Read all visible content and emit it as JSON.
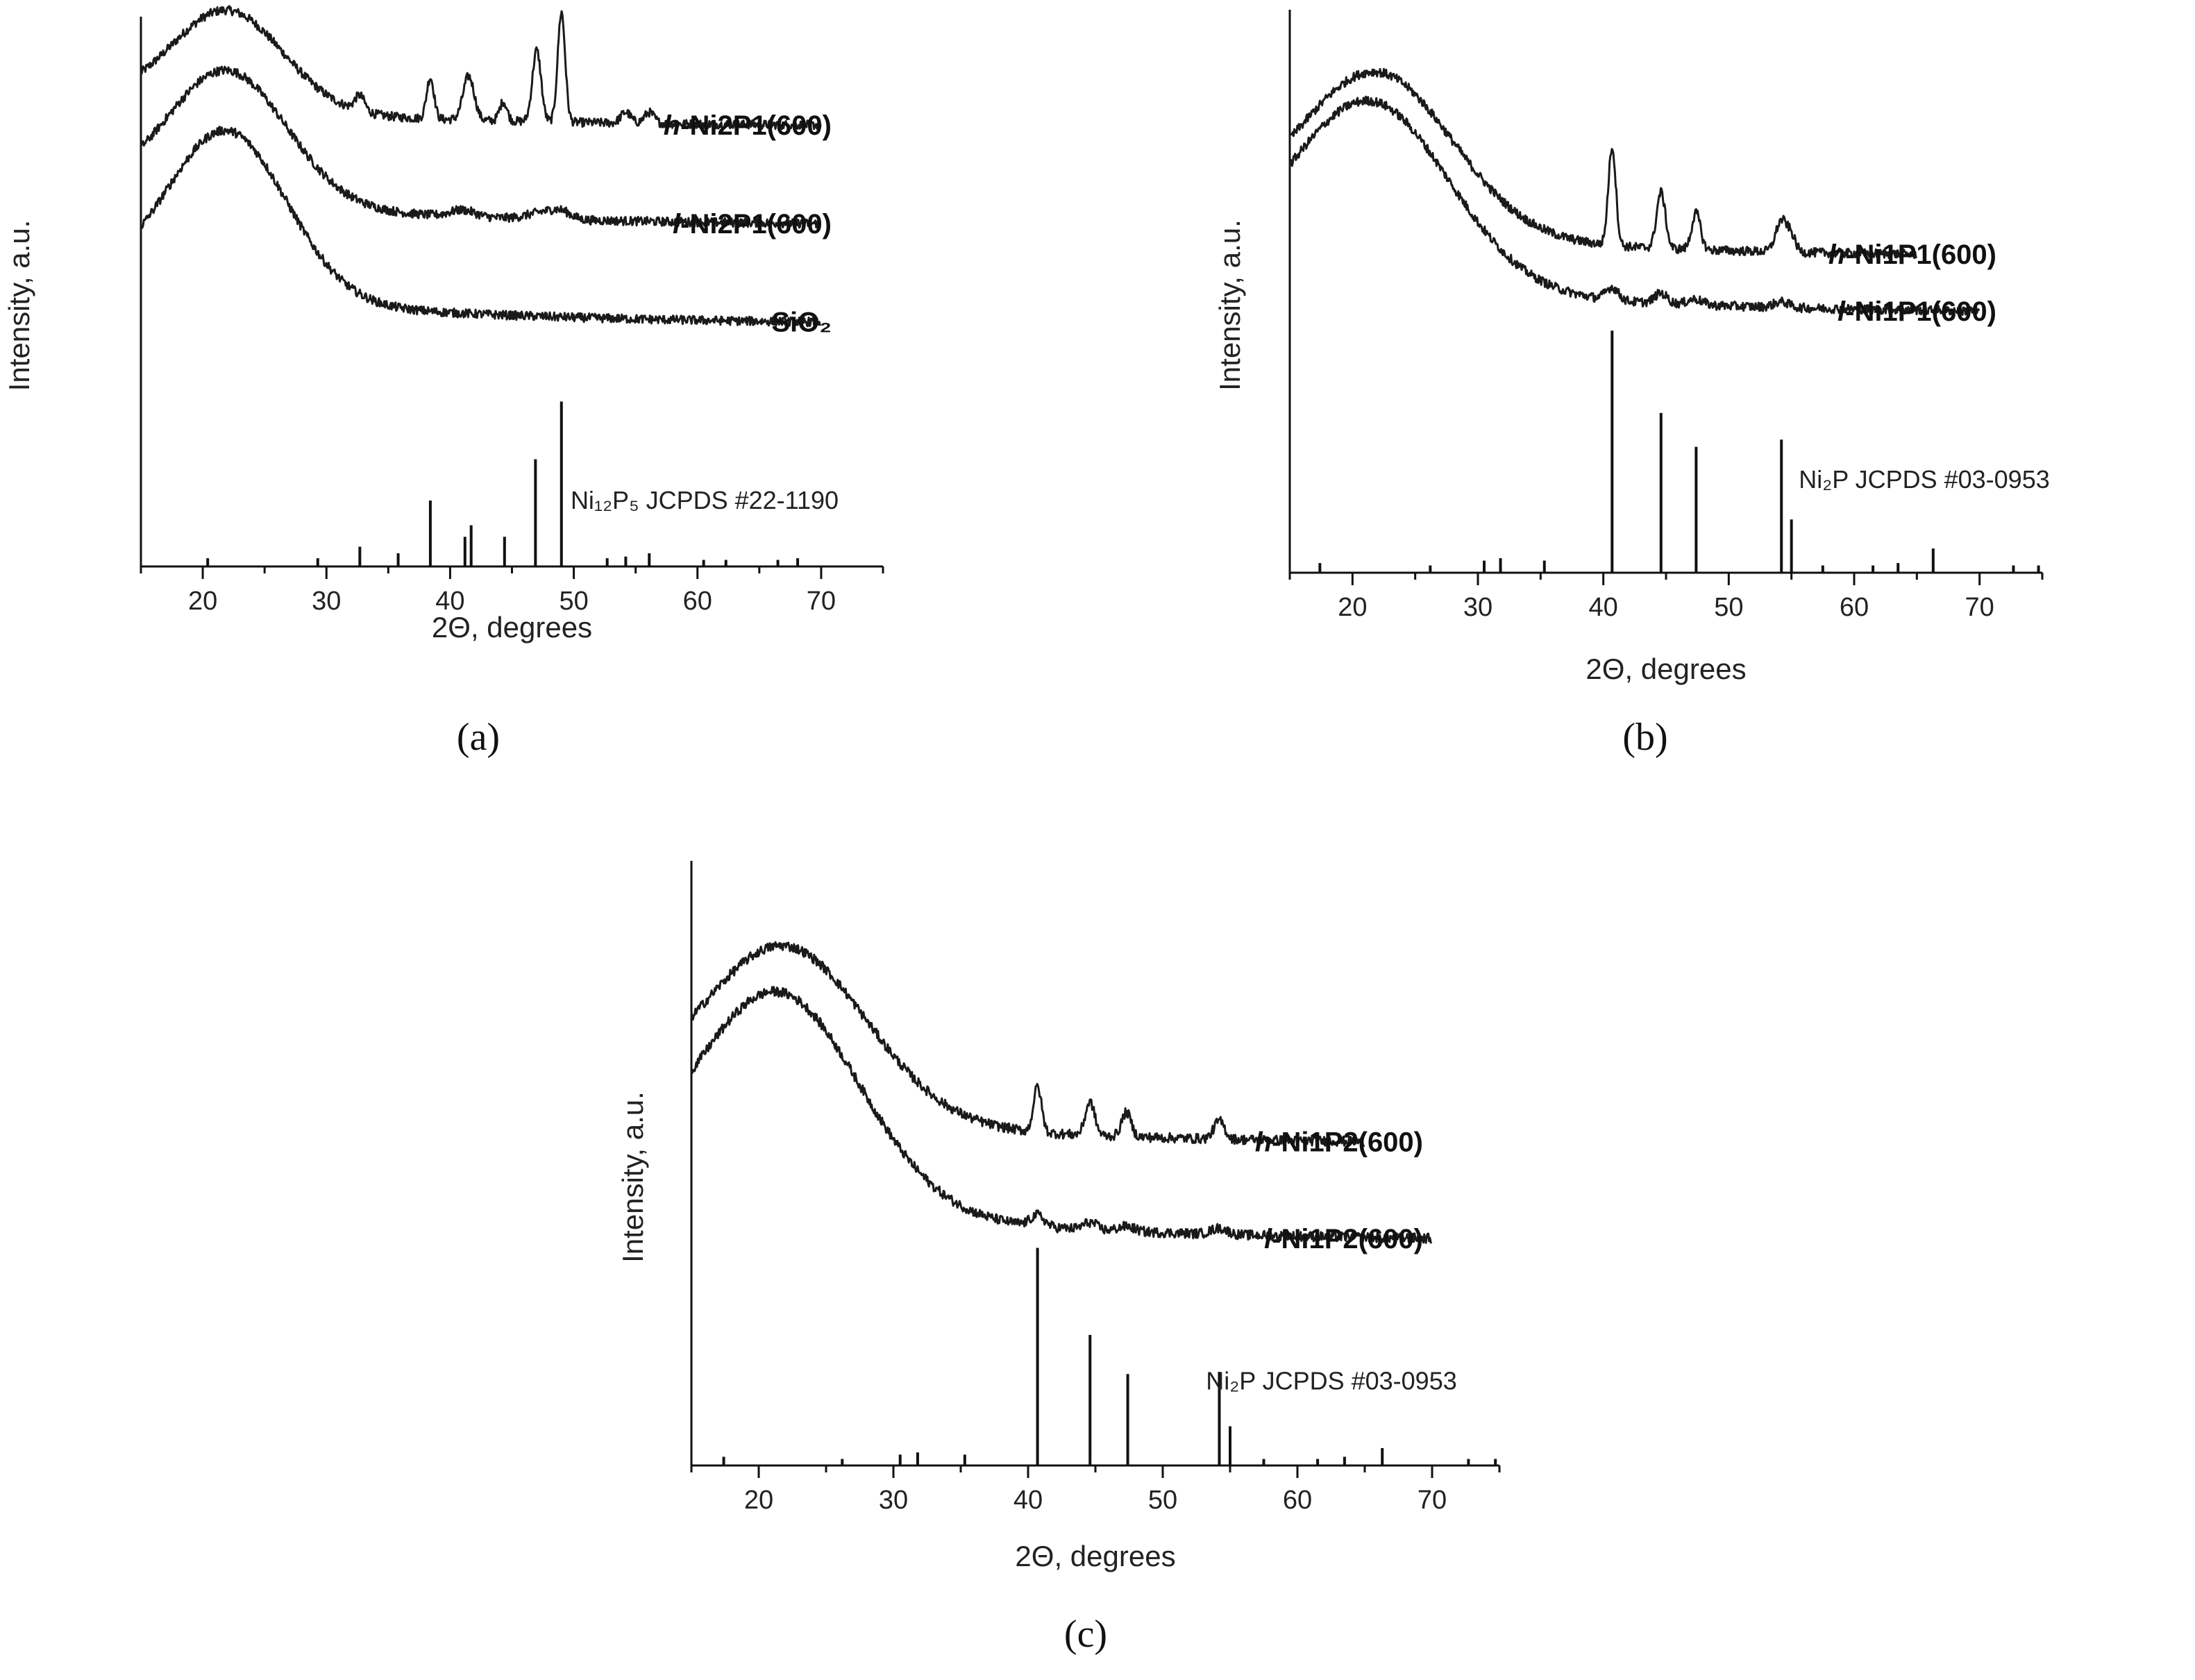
{
  "chart_data": [
    {
      "id": "a",
      "type": "line",
      "panel_label": "(a)",
      "xlabel": "2Θ, degrees",
      "ylabel": "Intensity, a.u.",
      "xlim": [
        15,
        75
      ],
      "ylim": [
        0,
        10
      ],
      "xticks": [
        20,
        30,
        40,
        50,
        60,
        70
      ],
      "series": [
        {
          "name": "h-Ni2P1(600)",
          "prefix": "h",
          "suffix": "-Ni2P1(600)",
          "offset": 8.0,
          "x_end": 70,
          "broad": {
            "center": 22,
            "width": 4.5,
            "height": 1.8
          },
          "peaks": [
            [
              32.7,
              0.28,
              0.4
            ],
            [
              38.4,
              0.75,
              0.3
            ],
            [
              41.5,
              0.8,
              0.45
            ],
            [
              44.3,
              0.35,
              0.3
            ],
            [
              47.0,
              1.3,
              0.35
            ],
            [
              49.0,
              2.0,
              0.3
            ],
            [
              54.2,
              0.2,
              0.4
            ],
            [
              56.1,
              0.2,
              0.4
            ]
          ]
        },
        {
          "name": "l-Ni2P1(600)",
          "prefix": "l",
          "suffix": "-Ni2P1(600)",
          "offset": 6.2,
          "x_end": 70,
          "broad": {
            "center": 22,
            "width": 4.8,
            "height": 2.4
          },
          "peaks": [
            [
              41.0,
              0.12,
              1.0
            ],
            [
              47.5,
              0.12,
              1.2
            ],
            [
              49.0,
              0.12,
              0.8
            ]
          ]
        },
        {
          "name": "SiO2",
          "prefix": "",
          "suffix": "SiO₂",
          "offset": 4.4,
          "x_end": 70,
          "broad": {
            "center": 22,
            "width": 4.8,
            "height": 3.0
          },
          "peaks": []
        }
      ],
      "reference": {
        "label": "Ni₁₂P₅ JCPDS #22-1190",
        "max_height": 3.0,
        "sticks": [
          [
            20.4,
            0.05
          ],
          [
            29.3,
            0.05
          ],
          [
            32.7,
            0.12
          ],
          [
            35.8,
            0.08
          ],
          [
            38.4,
            0.4
          ],
          [
            41.2,
            0.18
          ],
          [
            41.7,
            0.25
          ],
          [
            44.4,
            0.18
          ],
          [
            46.9,
            0.65
          ],
          [
            49.0,
            1.0
          ],
          [
            52.7,
            0.05
          ],
          [
            54.2,
            0.06
          ],
          [
            56.1,
            0.08
          ],
          [
            60.5,
            0.04
          ],
          [
            62.3,
            0.04
          ],
          [
            66.5,
            0.04
          ],
          [
            68.1,
            0.05
          ]
        ]
      }
    },
    {
      "id": "b",
      "type": "line",
      "panel_label": "(b)",
      "xlabel": "2Θ, degrees",
      "ylabel": "Intensity, a.u.",
      "xlim": [
        15,
        75
      ],
      "ylim": [
        0,
        10
      ],
      "xticks": [
        20,
        30,
        40,
        50,
        60,
        70
      ],
      "series": [
        {
          "name": "h-Ni1P1(600)",
          "prefix": "h",
          "suffix": "-Ni1P1(600)",
          "offset": 5.6,
          "x_end": 65,
          "broad": {
            "center": 22,
            "width": 6.0,
            "height": 2.8
          },
          "peaks": [
            [
              40.7,
              1.75,
              0.3
            ],
            [
              44.6,
              1.0,
              0.35
            ],
            [
              47.4,
              0.65,
              0.35
            ],
            [
              54.2,
              0.55,
              0.45
            ],
            [
              55.0,
              0.25,
              0.35
            ]
          ]
        },
        {
          "name": "l-Ni1P1(600)",
          "prefix": "l",
          "suffix": "-Ni1P1(600)",
          "offset": 4.6,
          "x_end": 70,
          "broad": {
            "center": 21.5,
            "width": 6.2,
            "height": 3.2
          },
          "peaks": [
            [
              40.7,
              0.22,
              0.5
            ],
            [
              44.6,
              0.18,
              0.5
            ],
            [
              47.3,
              0.1,
              0.6
            ],
            [
              54.2,
              0.1,
              0.6
            ]
          ]
        }
      ],
      "reference": {
        "label": "Ni₂P JCPDS #03-0953",
        "max_height": 4.3,
        "sticks": [
          [
            17.4,
            0.04
          ],
          [
            26.2,
            0.03
          ],
          [
            30.5,
            0.05
          ],
          [
            31.8,
            0.06
          ],
          [
            35.3,
            0.05
          ],
          [
            40.7,
            1.0
          ],
          [
            44.6,
            0.66
          ],
          [
            47.4,
            0.52
          ],
          [
            54.2,
            0.55
          ],
          [
            55.0,
            0.22
          ],
          [
            57.5,
            0.03
          ],
          [
            61.5,
            0.03
          ],
          [
            63.5,
            0.04
          ],
          [
            66.3,
            0.1
          ],
          [
            72.7,
            0.03
          ],
          [
            74.7,
            0.03
          ]
        ]
      }
    },
    {
      "id": "c",
      "type": "line",
      "panel_label": "(c)",
      "xlabel": "2Θ, degrees",
      "ylabel": "Intensity, a.u.",
      "xlim": [
        15,
        75
      ],
      "ylim": [
        0,
        10
      ],
      "xticks": [
        20,
        30,
        40,
        50,
        60,
        70
      ],
      "series": [
        {
          "name": "h-Ni1P2(600)",
          "prefix": "h",
          "suffix": "-Ni1P2(600)",
          "offset": 5.3,
          "x_end": 65,
          "broad": {
            "center": 22,
            "width": 6.0,
            "height": 2.8
          },
          "peaks": [
            [
              40.7,
              0.75,
              0.3
            ],
            [
              44.6,
              0.55,
              0.35
            ],
            [
              47.3,
              0.4,
              0.35
            ],
            [
              54.2,
              0.3,
              0.4
            ]
          ]
        },
        {
          "name": "l-Ni1P2(600)",
          "prefix": "l",
          "suffix": "-Ni1P2(600)",
          "offset": 3.7,
          "x_end": 70,
          "broad": {
            "center": 21.5,
            "width": 6.0,
            "height": 3.5
          },
          "peaks": [
            [
              40.7,
              0.18,
              0.5
            ],
            [
              44.6,
              0.12,
              0.5
            ],
            [
              47.3,
              0.08,
              0.6
            ],
            [
              54.2,
              0.1,
              0.6
            ]
          ]
        }
      ],
      "reference": {
        "label": "Ni₂P JCPDS #03-0953",
        "max_height": 3.6,
        "sticks": [
          [
            17.4,
            0.04
          ],
          [
            26.2,
            0.03
          ],
          [
            30.5,
            0.05
          ],
          [
            31.8,
            0.06
          ],
          [
            35.3,
            0.05
          ],
          [
            40.7,
            1.0
          ],
          [
            44.6,
            0.6
          ],
          [
            47.4,
            0.42
          ],
          [
            54.2,
            0.43
          ],
          [
            55.0,
            0.18
          ],
          [
            57.5,
            0.03
          ],
          [
            61.5,
            0.03
          ],
          [
            63.5,
            0.04
          ],
          [
            66.3,
            0.08
          ],
          [
            72.7,
            0.03
          ],
          [
            74.7,
            0.03
          ]
        ]
      }
    }
  ]
}
